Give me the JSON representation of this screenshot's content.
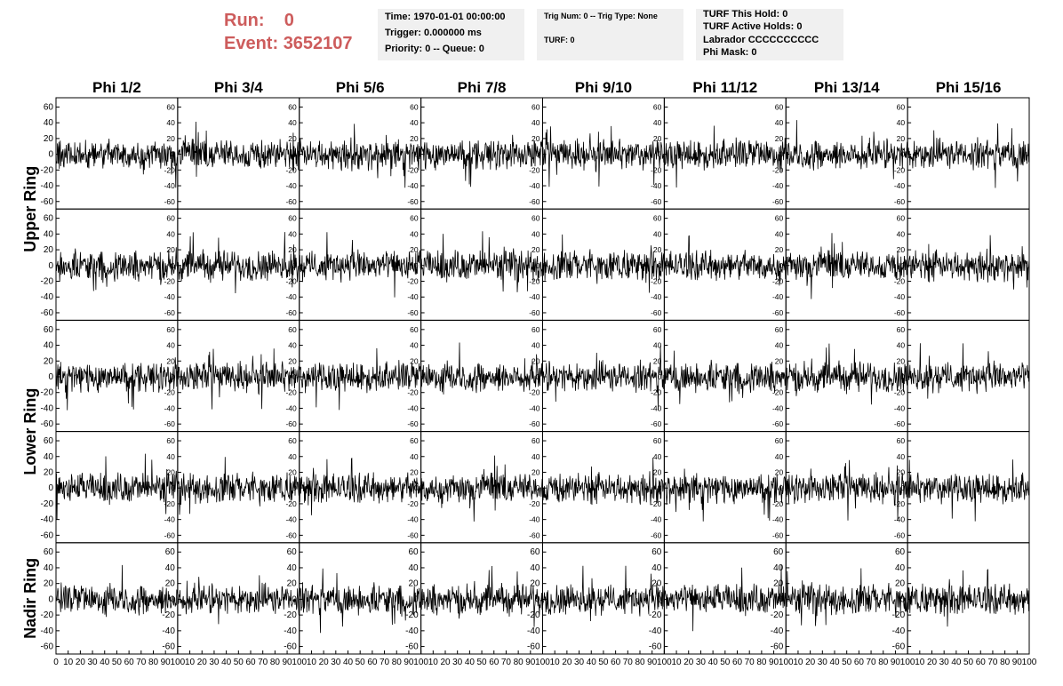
{
  "header": {
    "run_label": "Run:",
    "run_value": "0",
    "event_label": "Event:",
    "event_value": "3652107"
  },
  "info_time": {
    "line1": "Time: 1970-01-01 00:00:00",
    "line2": "Trigger: 0.000000 ms",
    "line3": "Priority: 0 -- Queue: 0"
  },
  "info_trig": {
    "line1": "Trig Num: 0 -- Trig Type: None",
    "line2": "TURF: 0"
  },
  "info_turf": {
    "line1": "TURF This Hold: 0",
    "line2": "TURF Active Holds: 0",
    "line3": "Labrador CCCCCCCCCC",
    "line4": "Phi Mask: 0"
  },
  "chart_data": {
    "type": "line",
    "columns": [
      "Phi 1/2",
      "Phi 3/4",
      "Phi 5/6",
      "Phi 7/8",
      "Phi 9/10",
      "Phi 11/12",
      "Phi 13/14",
      "Phi 15/16"
    ],
    "rows": [
      "Upper Ring",
      "",
      "Lower Ring",
      "",
      "Nadir Ring"
    ],
    "row_label_spans": [
      {
        "label": "Upper Ring",
        "rows": [
          0,
          1
        ]
      },
      {
        "label": "Lower Ring",
        "rows": [
          2,
          3
        ]
      },
      {
        "label": "Nadir Ring",
        "rows": [
          4
        ]
      }
    ],
    "xlim": [
      0,
      100
    ],
    "ylim": [
      -65,
      65
    ],
    "yticks": [
      -60,
      -40,
      -20,
      0,
      20,
      40,
      60
    ],
    "xticks_first": [
      "0",
      "10",
      "20",
      "30",
      "40",
      "50",
      "60",
      "70",
      "80",
      "90",
      "100"
    ],
    "xticks_other": [
      "10",
      "20",
      "30",
      "40",
      "50",
      "60",
      "70",
      "80",
      "90",
      "100"
    ],
    "samples_per_trace": 260,
    "trace_color": "#000000",
    "frame_color": "#000000",
    "noise_amplitude": 14,
    "spike_amplitude": 45,
    "grid": false
  }
}
